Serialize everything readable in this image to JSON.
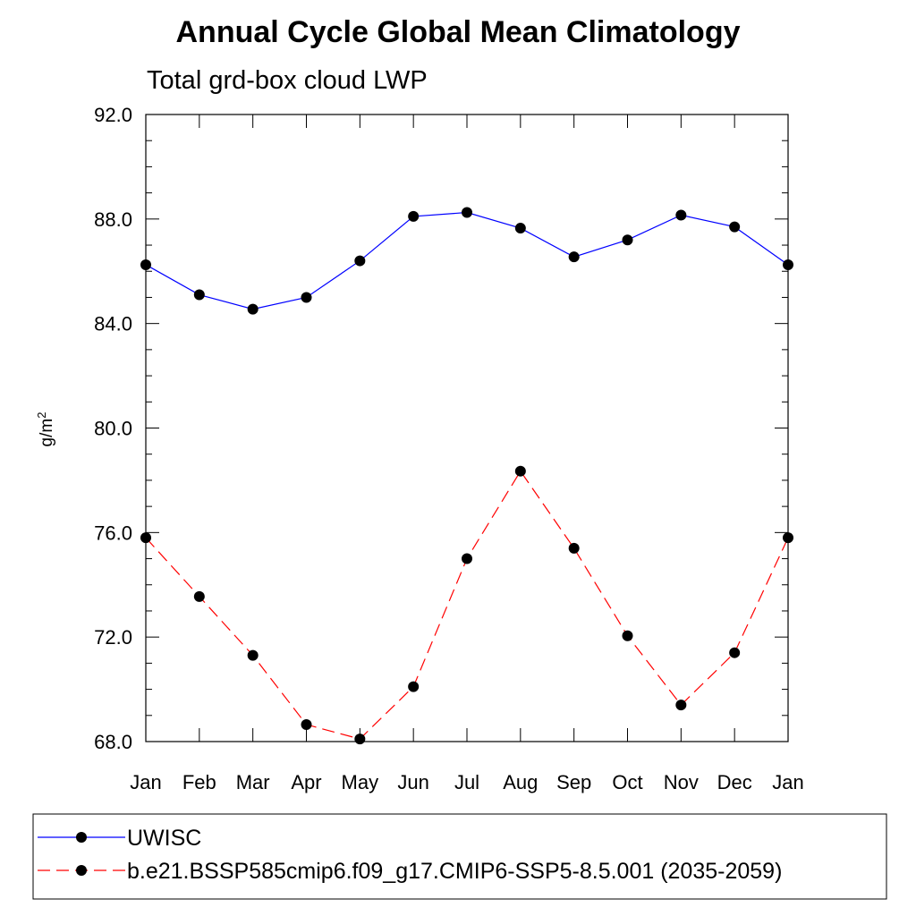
{
  "chart_data": {
    "type": "line",
    "title": "Annual Cycle Global Mean Climatology",
    "subtitle": "Total grd-box cloud LWP",
    "ylabel": "g/m",
    "ylabel_superscript": "2",
    "xlabel": "",
    "categories": [
      "Jan",
      "Feb",
      "Mar",
      "Apr",
      "May",
      "Jun",
      "Jul",
      "Aug",
      "Sep",
      "Oct",
      "Nov",
      "Dec",
      "Jan"
    ],
    "ylim": [
      68.0,
      92.0
    ],
    "yticks": [
      "68.0",
      "72.0",
      "76.0",
      "80.0",
      "84.0",
      "88.0",
      "92.0"
    ],
    "grid": false,
    "legend_position": "bottom",
    "series": [
      {
        "name": "UWISC",
        "color": "#0000ff",
        "dash": "solid",
        "marker": "filled-circle",
        "values": [
          86.25,
          85.1,
          84.55,
          85.0,
          86.4,
          88.1,
          88.25,
          87.65,
          86.55,
          87.2,
          88.15,
          87.7,
          86.25
        ]
      },
      {
        "name": "b.e21.BSSP585cmip6.f09_g17.CMIP6-SSP5-8.5.001 (2035-2059)",
        "color": "#ff0000",
        "dash": "dashed",
        "marker": "filled-circle",
        "values": [
          75.8,
          73.55,
          71.3,
          68.65,
          68.1,
          70.1,
          75.0,
          78.35,
          75.4,
          72.05,
          69.4,
          71.4,
          75.8
        ]
      }
    ]
  }
}
